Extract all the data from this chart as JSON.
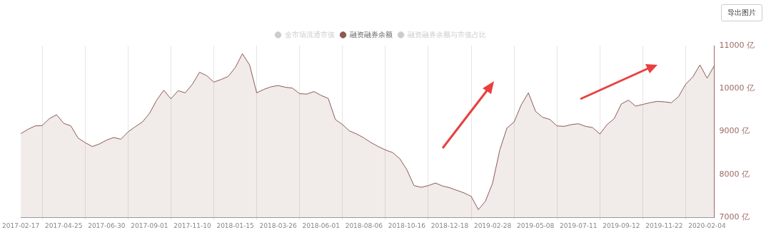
{
  "chart_data": {
    "type": "area",
    "annotations": [
      "导出图片"
    ],
    "categories": [
      "2017-02-17",
      null,
      null,
      null,
      null,
      null,
      "2017-04-25",
      null,
      null,
      null,
      null,
      null,
      "2017-06-30",
      null,
      null,
      null,
      null,
      null,
      "2017-09-01",
      null,
      null,
      null,
      null,
      null,
      "2017-11-10",
      null,
      null,
      null,
      null,
      null,
      "2018-01-15",
      null,
      null,
      null,
      null,
      null,
      "2018-03-26",
      null,
      null,
      null,
      null,
      null,
      "2018-06-01",
      null,
      null,
      null,
      null,
      null,
      "2018-08-06",
      null,
      null,
      null,
      null,
      null,
      "2018-10-16",
      null,
      null,
      null,
      null,
      null,
      "2018-12-18",
      null,
      null,
      null,
      null,
      null,
      "2019-02-28",
      null,
      null,
      null,
      null,
      null,
      "2019-05-08",
      null,
      null,
      null,
      null,
      null,
      "2019-07-11",
      null,
      null,
      null,
      null,
      null,
      "2019-09-12",
      null,
      null,
      null,
      null,
      null,
      "2019-11-22",
      null,
      null,
      null,
      null,
      null,
      "2020-02-04",
      null
    ],
    "series": [
      {
        "name": "全市场流通市值",
        "color": "#cccccc",
        "values": [
          null,
          null,
          null,
          null,
          null,
          null,
          null,
          null,
          null,
          null,
          null,
          null,
          null,
          null,
          null,
          null,
          null,
          null,
          null,
          null,
          null,
          null,
          null,
          null,
          null,
          null,
          null,
          null,
          null,
          null,
          null,
          null,
          null,
          null,
          null,
          null,
          null,
          null,
          null,
          null,
          null,
          null,
          null,
          null,
          null,
          null,
          null,
          null,
          null,
          null,
          null,
          null,
          null,
          null,
          null,
          null,
          null,
          null,
          null,
          null,
          null,
          null,
          null,
          null,
          null,
          null,
          null,
          null,
          null,
          null,
          null,
          null,
          null,
          null,
          null,
          null,
          null,
          null,
          null,
          null,
          null,
          null,
          null,
          null,
          null,
          null,
          null,
          null,
          null,
          null,
          null,
          null,
          null,
          null,
          null,
          null,
          null,
          null
        ]
      },
      {
        "name": "融资融券余额",
        "color": "#8c5a52",
        "values": [
          8950,
          9050,
          9130,
          9140,
          9300,
          9390,
          9190,
          9130,
          8850,
          8740,
          8650,
          8710,
          8800,
          8860,
          8820,
          8990,
          9110,
          9220,
          9420,
          9730,
          9960,
          9760,
          9950,
          9900,
          10100,
          10380,
          10300,
          10150,
          10210,
          10280,
          10490,
          10810,
          10550,
          9900,
          9980,
          10040,
          10070,
          10030,
          10010,
          9880,
          9870,
          9930,
          9840,
          9770,
          9280,
          9160,
          9010,
          8940,
          8850,
          8740,
          8650,
          8570,
          8510,
          8370,
          8110,
          7740,
          7700,
          7740,
          7800,
          7730,
          7690,
          7630,
          7570,
          7490,
          7180,
          7380,
          7800,
          8570,
          9080,
          9220,
          9620,
          9900,
          9470,
          9330,
          9280,
          9130,
          9120,
          9160,
          9180,
          9120,
          9090,
          8940,
          9160,
          9300,
          9640,
          9730,
          9590,
          9630,
          9670,
          9700,
          9690,
          9670,
          9810,
          10100,
          10270,
          10550,
          10240,
          10530
        ]
      },
      {
        "name": "融资融券余额与市值占比",
        "color": "#cccccc",
        "values": [
          null,
          null,
          null,
          null,
          null,
          null,
          null,
          null,
          null,
          null,
          null,
          null,
          null,
          null,
          null,
          null,
          null,
          null,
          null,
          null,
          null,
          null,
          null,
          null,
          null,
          null,
          null,
          null,
          null,
          null,
          null,
          null,
          null,
          null,
          null,
          null,
          null,
          null,
          null,
          null,
          null,
          null,
          null,
          null,
          null,
          null,
          null,
          null,
          null,
          null,
          null,
          null,
          null,
          null,
          null,
          null,
          null,
          null,
          null,
          null,
          null,
          null,
          null,
          null,
          null,
          null,
          null,
          null,
          null,
          null,
          null,
          null,
          null,
          null,
          null,
          null,
          null,
          null,
          null,
          null,
          null,
          null,
          null,
          null,
          null,
          null,
          null,
          null,
          null,
          null,
          null,
          null,
          null,
          null,
          null,
          null,
          null,
          null
        ]
      }
    ],
    "ylim": [
      7000,
      11000
    ],
    "yticks": [
      {
        "value": 7000,
        "label": "7000 亿"
      },
      {
        "value": 8000,
        "label": "8000 亿"
      },
      {
        "value": 9000,
        "label": "9000 亿"
      },
      {
        "value": 10000,
        "label": "10000 亿"
      },
      {
        "value": 11000,
        "label": "11000 亿"
      }
    ],
    "grid": "x",
    "legend": "top",
    "marker": "none",
    "line_style": "solid"
  }
}
